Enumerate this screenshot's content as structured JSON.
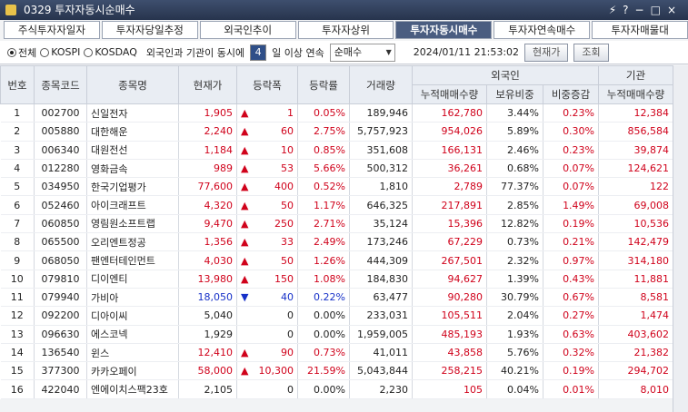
{
  "window": {
    "title": "0329 투자자동시순매수"
  },
  "tabs": [
    "주식투자자일자",
    "투자자당일추정",
    "외국인추이",
    "투자자상위",
    "투자자동시매수",
    "투자자연속매수",
    "투자자매물대"
  ],
  "active_tab": 4,
  "filter": {
    "markets": [
      "전체",
      "KOSPI",
      "KOSDAQ"
    ],
    "selected_market": 0,
    "condition_prefix": "외국인과 기관이 동시에",
    "days": "4",
    "condition_suffix": "일 이상 연속",
    "mode": "순매수",
    "datetime": "2024/01/11  21:53:02",
    "buttons": [
      "현재가",
      "조회"
    ]
  },
  "table": {
    "group_headers": {
      "foreign": "외국인",
      "institution": "기관"
    },
    "columns": [
      "번호",
      "종목코드",
      "종목명",
      "현재가",
      "등락폭",
      "등락률",
      "거래량",
      "누적매매수량",
      "보유비중",
      "비중증감",
      "누적매매수량"
    ],
    "rows": [
      {
        "no": "1",
        "code": "002700",
        "name": "신일전자",
        "price": "1,905",
        "arrow": "▲",
        "change": "1",
        "rate": "0.05%",
        "volume": "189,946",
        "foreign_net": "162,780",
        "foreign_hold": "3.44%",
        "foreign_chg": "0.23%",
        "inst_net": "12,384"
      },
      {
        "no": "2",
        "code": "005880",
        "name": "대한해운",
        "price": "2,240",
        "arrow": "▲",
        "change": "60",
        "rate": "2.75%",
        "volume": "5,757,923",
        "foreign_net": "954,026",
        "foreign_hold": "5.89%",
        "foreign_chg": "0.30%",
        "inst_net": "856,584"
      },
      {
        "no": "3",
        "code": "006340",
        "name": "대원전선",
        "price": "1,184",
        "arrow": "▲",
        "change": "10",
        "rate": "0.85%",
        "volume": "351,608",
        "foreign_net": "166,131",
        "foreign_hold": "2.46%",
        "foreign_chg": "0.23%",
        "inst_net": "39,874"
      },
      {
        "no": "4",
        "code": "012280",
        "name": "영화금속",
        "price": "989",
        "arrow": "▲",
        "change": "53",
        "rate": "5.66%",
        "volume": "500,312",
        "foreign_net": "36,261",
        "foreign_hold": "0.68%",
        "foreign_chg": "0.07%",
        "inst_net": "124,621"
      },
      {
        "no": "5",
        "code": "034950",
        "name": "한국기업평가",
        "price": "77,600",
        "arrow": "▲",
        "change": "400",
        "rate": "0.52%",
        "volume": "1,810",
        "foreign_net": "2,789",
        "foreign_hold": "77.37%",
        "foreign_chg": "0.07%",
        "inst_net": "122"
      },
      {
        "no": "6",
        "code": "052460",
        "name": "아이크래프트",
        "price": "4,320",
        "arrow": "▲",
        "change": "50",
        "rate": "1.17%",
        "volume": "646,325",
        "foreign_net": "217,891",
        "foreign_hold": "2.85%",
        "foreign_chg": "1.49%",
        "inst_net": "69,008"
      },
      {
        "no": "7",
        "code": "060850",
        "name": "영림원소프트랩",
        "price": "9,470",
        "arrow": "▲",
        "change": "250",
        "rate": "2.71%",
        "volume": "35,124",
        "foreign_net": "15,396",
        "foreign_hold": "12.82%",
        "foreign_chg": "0.19%",
        "inst_net": "10,536"
      },
      {
        "no": "8",
        "code": "065500",
        "name": "오리엔트정공",
        "price": "1,356",
        "arrow": "▲",
        "change": "33",
        "rate": "2.49%",
        "volume": "173,246",
        "foreign_net": "67,229",
        "foreign_hold": "0.73%",
        "foreign_chg": "0.21%",
        "inst_net": "142,479"
      },
      {
        "no": "9",
        "code": "068050",
        "name": "팬엔터테인먼트",
        "price": "4,030",
        "arrow": "▲",
        "change": "50",
        "rate": "1.26%",
        "volume": "444,309",
        "foreign_net": "267,501",
        "foreign_hold": "2.32%",
        "foreign_chg": "0.97%",
        "inst_net": "314,180"
      },
      {
        "no": "10",
        "code": "079810",
        "name": "디이엔티",
        "price": "13,980",
        "arrow": "▲",
        "change": "150",
        "rate": "1.08%",
        "volume": "184,830",
        "foreign_net": "94,627",
        "foreign_hold": "1.39%",
        "foreign_chg": "0.43%",
        "inst_net": "11,881"
      },
      {
        "no": "11",
        "code": "079940",
        "name": "가비아",
        "price": "18,050",
        "arrow": "▼",
        "change": "40",
        "rate": "0.22%",
        "volume": "63,477",
        "foreign_net": "90,280",
        "foreign_hold": "30.79%",
        "foreign_chg": "0.67%",
        "inst_net": "8,581"
      },
      {
        "no": "12",
        "code": "092200",
        "name": "디아이씨",
        "price": "5,040",
        "change": "0",
        "rate": "0.00%",
        "volume": "233,031",
        "foreign_net": "105,511",
        "foreign_hold": "2.04%",
        "foreign_chg": "0.27%",
        "inst_net": "1,474"
      },
      {
        "no": "13",
        "code": "096630",
        "name": "에스코넥",
        "price": "1,929",
        "change": "0",
        "rate": "0.00%",
        "volume": "1,959,005",
        "foreign_net": "485,193",
        "foreign_hold": "1.93%",
        "foreign_chg": "0.63%",
        "inst_net": "403,602"
      },
      {
        "no": "14",
        "code": "136540",
        "name": "윈스",
        "price": "12,410",
        "arrow": "▲",
        "change": "90",
        "rate": "0.73%",
        "volume": "41,011",
        "foreign_net": "43,858",
        "foreign_hold": "5.76%",
        "foreign_chg": "0.32%",
        "inst_net": "21,382"
      },
      {
        "no": "15",
        "code": "377300",
        "name": "카카오페이",
        "price": "58,000",
        "arrow": "▲",
        "change": "10,300",
        "rate": "21.59%",
        "volume": "5,043,844",
        "foreign_net": "258,215",
        "foreign_hold": "40.21%",
        "foreign_chg": "0.19%",
        "inst_net": "294,702"
      },
      {
        "no": "16",
        "code": "422040",
        "name": "엔에이치스팩23호",
        "price": "2,105",
        "change": "0",
        "rate": "0.00%",
        "volume": "2,230",
        "foreign_net": "105",
        "foreign_hold": "0.04%",
        "foreign_chg": "0.01%",
        "inst_net": "8,010"
      }
    ]
  }
}
